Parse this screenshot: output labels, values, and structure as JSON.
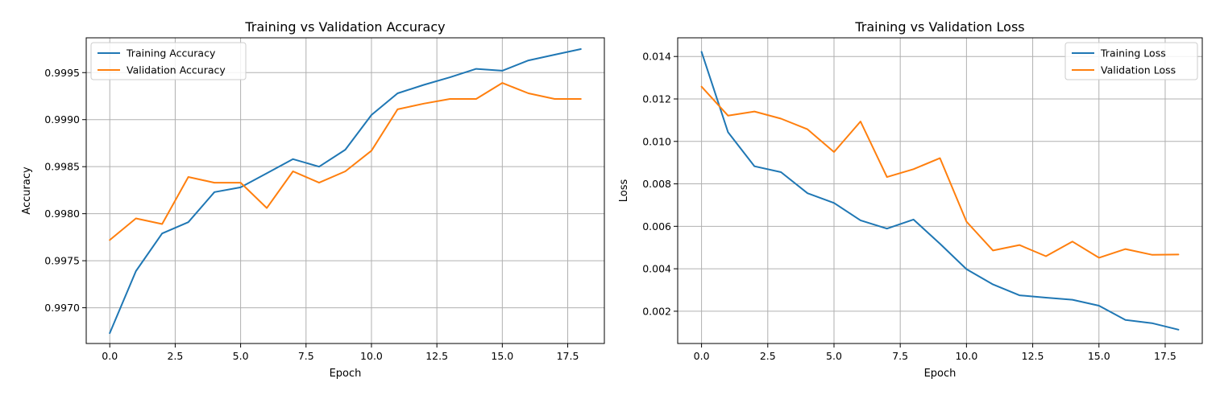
{
  "chart_data": [
    {
      "type": "line",
      "title": "Training vs Validation Accuracy",
      "xlabel": "Epoch",
      "ylabel": "Accuracy",
      "x": [
        0,
        1,
        2,
        3,
        4,
        5,
        6,
        7,
        8,
        9,
        10,
        11,
        12,
        13,
        14,
        15,
        16,
        17,
        18
      ],
      "xlim": [
        -0.9,
        18.9
      ],
      "ylim": [
        0.99662,
        0.99987
      ],
      "xticks": [
        0.0,
        2.5,
        5.0,
        7.5,
        10.0,
        12.5,
        15.0,
        17.5
      ],
      "xtick_labels": [
        "0.0",
        "2.5",
        "5.0",
        "7.5",
        "10.0",
        "12.5",
        "15.0",
        "17.5"
      ],
      "yticks": [
        0.997,
        0.9975,
        0.998,
        0.9985,
        0.999,
        0.9995
      ],
      "ytick_labels": [
        "0.9970",
        "0.9975",
        "0.9980",
        "0.9985",
        "0.9990",
        "0.9995"
      ],
      "grid": true,
      "legend": "upper left",
      "series": [
        {
          "name": "Training Accuracy",
          "color": "#1f77b4",
          "values": [
            0.99673,
            0.99739,
            0.99779,
            0.99791,
            0.99823,
            0.99828,
            0.99843,
            0.99858,
            0.9985,
            0.99868,
            0.99905,
            0.99928,
            0.99937,
            0.99945,
            0.99954,
            0.99952,
            0.99963,
            0.99969,
            0.99975
          ]
        },
        {
          "name": "Validation Accuracy",
          "color": "#ff7f0e",
          "values": [
            0.99772,
            0.99795,
            0.99789,
            0.99839,
            0.99833,
            0.99833,
            0.99806,
            0.99845,
            0.99833,
            0.99845,
            0.99867,
            0.99911,
            0.99917,
            0.99922,
            0.99922,
            0.99939,
            0.99928,
            0.99922,
            0.99922
          ]
        }
      ]
    },
    {
      "type": "line",
      "title": "Training vs Validation Loss",
      "xlabel": "Epoch",
      "ylabel": "Loss",
      "x": [
        0,
        1,
        2,
        3,
        4,
        5,
        6,
        7,
        8,
        9,
        10,
        11,
        12,
        13,
        14,
        15,
        16,
        17,
        18
      ],
      "xlim": [
        -0.9,
        18.9
      ],
      "ylim": [
        0.00048,
        0.01488
      ],
      "xticks": [
        0.0,
        2.5,
        5.0,
        7.5,
        10.0,
        12.5,
        15.0,
        17.5
      ],
      "xtick_labels": [
        "0.0",
        "2.5",
        "5.0",
        "7.5",
        "10.0",
        "12.5",
        "15.0",
        "17.5"
      ],
      "yticks": [
        0.002,
        0.004,
        0.006,
        0.008,
        0.01,
        0.012,
        0.014
      ],
      "ytick_labels": [
        "0.002",
        "0.004",
        "0.006",
        "0.008",
        "0.010",
        "0.012",
        "0.014"
      ],
      "grid": true,
      "legend": "upper right",
      "series": [
        {
          "name": "Training Loss",
          "color": "#1f77b4",
          "values": [
            0.01422,
            0.01043,
            0.00883,
            0.00855,
            0.00756,
            0.0071,
            0.00628,
            0.00589,
            0.00632,
            0.00518,
            0.00398,
            0.00326,
            0.00275,
            0.00264,
            0.00254,
            0.00226,
            0.00159,
            0.00144,
            0.00113
          ]
        },
        {
          "name": "Validation Loss",
          "color": "#ff7f0e",
          "values": [
            0.01258,
            0.01121,
            0.01141,
            0.01107,
            0.01057,
            0.0095,
            0.01094,
            0.00832,
            0.00869,
            0.00921,
            0.00622,
            0.00486,
            0.00512,
            0.00459,
            0.00528,
            0.00452,
            0.00493,
            0.00466,
            0.00467
          ]
        }
      ]
    }
  ]
}
